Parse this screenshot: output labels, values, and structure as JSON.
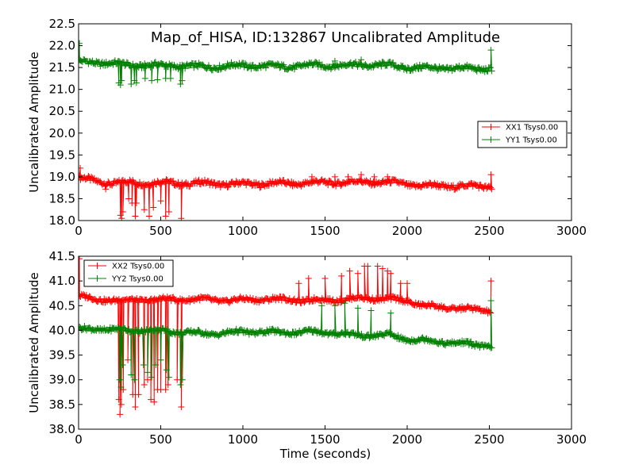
{
  "chart_data": [
    {
      "type": "line",
      "title": "Map_of_HISA, ID:132867 Uncalibrated Amplitude",
      "xlabel": "",
      "ylabel": "Uncalibrated Amplitude",
      "xlim": [
        0,
        3000
      ],
      "ylim": [
        18.0,
        22.5
      ],
      "xticks": [
        "0",
        "500",
        "1000",
        "1500",
        "2000",
        "2500",
        "3000"
      ],
      "yticks": [
        "18.0",
        "18.5",
        "19.0",
        "19.5",
        "20.0",
        "20.5",
        "21.0",
        "21.5",
        "22.0",
        "22.5"
      ],
      "grid": false,
      "legend_position": "center-right",
      "series": [
        {
          "name": "XX1 Tsys0.00",
          "color": "#ff0000",
          "marker": "+",
          "base": [
            [
              0,
              18.98
            ],
            [
              100,
              18.9
            ],
            [
              200,
              18.86
            ],
            [
              300,
              18.87
            ],
            [
              400,
              18.86
            ],
            [
              500,
              18.87
            ],
            [
              600,
              18.85
            ],
            [
              700,
              18.85
            ],
            [
              800,
              18.85
            ],
            [
              900,
              18.83
            ],
            [
              1000,
              18.84
            ],
            [
              1100,
              18.84
            ],
            [
              1200,
              18.85
            ],
            [
              1300,
              18.85
            ],
            [
              1400,
              18.86
            ],
            [
              1500,
              18.87
            ],
            [
              1600,
              18.87
            ],
            [
              1700,
              18.88
            ],
            [
              1800,
              18.88
            ],
            [
              1900,
              18.87
            ],
            [
              2000,
              18.83
            ],
            [
              2100,
              18.8
            ],
            [
              2200,
              18.79
            ],
            [
              2300,
              18.79
            ],
            [
              2400,
              18.79
            ],
            [
              2510,
              18.78
            ]
          ],
          "spikes": [
            [
              10,
              19.2
            ],
            [
              165,
              18.72
            ],
            [
              255,
              18.12
            ],
            [
              262,
              18.05
            ],
            [
              270,
              18.2
            ],
            [
              305,
              18.5
            ],
            [
              325,
              18.4
            ],
            [
              345,
              18.1
            ],
            [
              352,
              18.4
            ],
            [
              400,
              18.25
            ],
            [
              430,
              18.1
            ],
            [
              455,
              18.3
            ],
            [
              500,
              18.45
            ],
            [
              530,
              18.1
            ],
            [
              550,
              18.2
            ],
            [
              625,
              18.05
            ],
            [
              1420,
              19.0
            ],
            [
              1560,
              19.0
            ],
            [
              1640,
              19.0
            ],
            [
              1720,
              19.05
            ],
            [
              1800,
              19.0
            ],
            [
              1880,
              19.0
            ],
            [
              2510,
              19.05
            ],
            [
              2515,
              18.72
            ]
          ]
        },
        {
          "name": "YY1 Tsys0.00",
          "color": "#008000",
          "marker": "+",
          "base": [
            [
              0,
              21.62
            ],
            [
              100,
              21.62
            ],
            [
              200,
              21.6
            ],
            [
              300,
              21.55
            ],
            [
              400,
              21.56
            ],
            [
              500,
              21.54
            ],
            [
              600,
              21.55
            ],
            [
              700,
              21.52
            ],
            [
              800,
              21.52
            ],
            [
              900,
              21.53
            ],
            [
              1000,
              21.55
            ],
            [
              1100,
              21.54
            ],
            [
              1200,
              21.52
            ],
            [
              1300,
              21.53
            ],
            [
              1400,
              21.55
            ],
            [
              1500,
              21.55
            ],
            [
              1600,
              21.55
            ],
            [
              1700,
              21.56
            ],
            [
              1800,
              21.56
            ],
            [
              1900,
              21.55
            ],
            [
              2000,
              21.5
            ],
            [
              2100,
              21.49
            ],
            [
              2200,
              21.49
            ],
            [
              2300,
              21.48
            ],
            [
              2400,
              21.48
            ],
            [
              2510,
              21.47
            ]
          ],
          "spikes": [
            [
              5,
              22.05
            ],
            [
              245,
              21.15
            ],
            [
              255,
              21.1
            ],
            [
              262,
              21.2
            ],
            [
              320,
              21.12
            ],
            [
              340,
              21.2
            ],
            [
              352,
              21.15
            ],
            [
              405,
              21.25
            ],
            [
              445,
              21.2
            ],
            [
              480,
              21.22
            ],
            [
              530,
              21.25
            ],
            [
              560,
              21.25
            ],
            [
              620,
              21.12
            ],
            [
              630,
              21.2
            ],
            [
              1560,
              21.65
            ],
            [
              1720,
              21.68
            ],
            [
              2510,
              21.9
            ],
            [
              2515,
              21.42
            ]
          ]
        }
      ]
    },
    {
      "type": "line",
      "title": "",
      "xlabel": "Time (seconds)",
      "ylabel": "Uncalibrated Amplitude",
      "xlim": [
        0,
        3000
      ],
      "ylim": [
        38.0,
        41.5
      ],
      "xticks": [
        "0",
        "500",
        "1000",
        "1500",
        "2000",
        "2500",
        "3000"
      ],
      "yticks": [
        "38.0",
        "38.5",
        "39.0",
        "39.5",
        "40.0",
        "40.5",
        "41.0",
        "41.5"
      ],
      "grid": false,
      "legend_position": "upper-left",
      "series": [
        {
          "name": "XX2 Tsys0.00",
          "color": "#ff0000",
          "marker": "+",
          "base": [
            [
              0,
              40.7
            ],
            [
              100,
              40.62
            ],
            [
              200,
              40.62
            ],
            [
              300,
              40.6
            ],
            [
              400,
              40.62
            ],
            [
              500,
              40.62
            ],
            [
              600,
              40.63
            ],
            [
              700,
              40.63
            ],
            [
              800,
              40.62
            ],
            [
              900,
              40.6
            ],
            [
              1000,
              40.62
            ],
            [
              1100,
              40.63
            ],
            [
              1200,
              40.63
            ],
            [
              1300,
              40.62
            ],
            [
              1400,
              40.6
            ],
            [
              1500,
              40.62
            ],
            [
              1600,
              40.62
            ],
            [
              1700,
              40.65
            ],
            [
              1800,
              40.65
            ],
            [
              1900,
              40.63
            ],
            [
              2000,
              40.6
            ],
            [
              2100,
              40.5
            ],
            [
              2200,
              40.47
            ],
            [
              2300,
              40.45
            ],
            [
              2400,
              40.42
            ],
            [
              2510,
              40.4
            ]
          ],
          "spikes": [
            [
              5,
              41.45
            ],
            [
              245,
              38.6
            ],
            [
              252,
              38.3
            ],
            [
              260,
              38.5
            ],
            [
              272,
              38.8
            ],
            [
              300,
              39.4
            ],
            [
              330,
              38.7
            ],
            [
              345,
              38.45
            ],
            [
              365,
              38.7
            ],
            [
              400,
              38.9
            ],
            [
              420,
              39.0
            ],
            [
              440,
              38.6
            ],
            [
              460,
              38.55
            ],
            [
              480,
              38.8
            ],
            [
              500,
              38.8
            ],
            [
              530,
              38.8
            ],
            [
              545,
              38.9
            ],
            [
              600,
              39.0
            ],
            [
              625,
              38.45
            ],
            [
              1340,
              40.95
            ],
            [
              1400,
              41.05
            ],
            [
              1500,
              41.05
            ],
            [
              1600,
              41.1
            ],
            [
              1650,
              41.2
            ],
            [
              1700,
              41.15
            ],
            [
              1740,
              41.3
            ],
            [
              1760,
              41.3
            ],
            [
              1820,
              41.3
            ],
            [
              1850,
              41.25
            ],
            [
              1880,
              41.2
            ],
            [
              1900,
              41.15
            ],
            [
              1960,
              40.95
            ],
            [
              2000,
              40.95
            ],
            [
              2510,
              41.0
            ]
          ]
        },
        {
          "name": "YY2 Tsys0.00",
          "color": "#008000",
          "marker": "+",
          "base": [
            [
              0,
              40.02
            ],
            [
              100,
              40.03
            ],
            [
              200,
              40.02
            ],
            [
              300,
              40.0
            ],
            [
              400,
              40.0
            ],
            [
              500,
              40.0
            ],
            [
              600,
              39.97
            ],
            [
              700,
              39.95
            ],
            [
              800,
              39.93
            ],
            [
              900,
              39.95
            ],
            [
              1000,
              39.97
            ],
            [
              1100,
              39.97
            ],
            [
              1200,
              39.96
            ],
            [
              1300,
              39.96
            ],
            [
              1400,
              39.97
            ],
            [
              1500,
              39.96
            ],
            [
              1600,
              39.93
            ],
            [
              1700,
              39.9
            ],
            [
              1800,
              39.9
            ],
            [
              1900,
              39.9
            ],
            [
              2000,
              39.82
            ],
            [
              2100,
              39.8
            ],
            [
              2200,
              39.77
            ],
            [
              2300,
              39.74
            ],
            [
              2400,
              39.72
            ],
            [
              2510,
              39.68
            ]
          ],
          "spikes": [
            [
              250,
              39.0
            ],
            [
              258,
              38.85
            ],
            [
              268,
              39.3
            ],
            [
              320,
              39.1
            ],
            [
              340,
              39.0
            ],
            [
              395,
              39.3
            ],
            [
              420,
              39.15
            ],
            [
              445,
              39.05
            ],
            [
              470,
              39.3
            ],
            [
              500,
              39.4
            ],
            [
              535,
              39.2
            ],
            [
              550,
              39.05
            ],
            [
              620,
              38.9
            ],
            [
              632,
              39.0
            ],
            [
              1480,
              40.5
            ],
            [
              1560,
              40.5
            ],
            [
              1620,
              40.55
            ],
            [
              1700,
              40.45
            ],
            [
              1780,
              40.4
            ],
            [
              1900,
              40.35
            ],
            [
              2510,
              40.6
            ],
            [
              2515,
              39.65
            ]
          ]
        }
      ]
    }
  ]
}
